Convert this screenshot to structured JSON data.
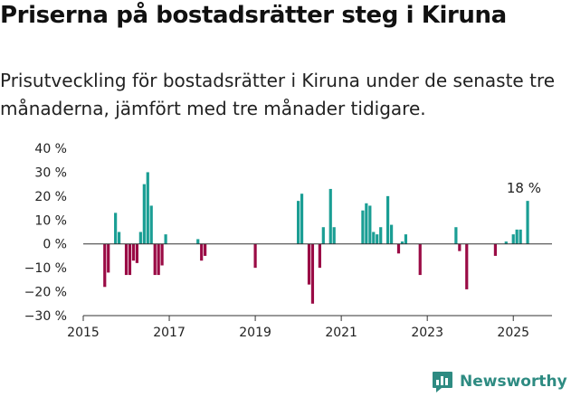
{
  "header": {
    "title": "Priserna på bostadsrätter steg i Kiruna",
    "subtitle": "Prisutveckling för bostadsrätter i Kiruna under de senaste tre månaderna, jämfört med tre månader tidigare."
  },
  "brand": {
    "name": "Newsworthy"
  },
  "colors": {
    "positive": "#1a9e94",
    "negative": "#9a0b45",
    "axis": "#333333",
    "text": "#222222",
    "brand": "#2e8b82"
  },
  "chart_data": {
    "type": "bar",
    "title": "Priserna på bostadsrätter steg i Kiruna",
    "subtitle": "Prisutveckling för bostadsrätter i Kiruna under de senaste tre månaderna, jämfört med tre månader tidigare.",
    "ylim": [
      -30,
      40
    ],
    "yticks": [
      40,
      30,
      20,
      10,
      0,
      -10,
      -20,
      -30
    ],
    "ytick_labels": [
      "40 %",
      "30 %",
      "20 %",
      "10 %",
      "0 %",
      "−10 %",
      "−20 %",
      "−30 %"
    ],
    "xlim": [
      2015.0,
      2025.9
    ],
    "xticks": [
      2015,
      2017,
      2019,
      2021,
      2023,
      2025
    ],
    "xtick_labels": [
      "2015",
      "2017",
      "2019",
      "2021",
      "2023",
      "2025"
    ],
    "grid": false,
    "annotation": {
      "text": "18 %",
      "x": 2025.33,
      "y": 18
    },
    "x": [
      2015.5,
      2015.583,
      2015.75,
      2015.833,
      2016.0,
      2016.083,
      2016.167,
      2016.25,
      2016.333,
      2016.417,
      2016.5,
      2016.583,
      2016.667,
      2016.75,
      2016.833,
      2016.917,
      2017.667,
      2017.75,
      2017.833,
      2019.0,
      2020.0,
      2020.083,
      2020.25,
      2020.333,
      2020.5,
      2020.583,
      2020.75,
      2020.833,
      2021.5,
      2021.583,
      2021.667,
      2021.75,
      2021.833,
      2021.917,
      2022.083,
      2022.167,
      2022.333,
      2022.417,
      2022.5,
      2022.833,
      2023.667,
      2023.75,
      2023.917,
      2024.583,
      2024.833,
      2025.0,
      2025.083,
      2025.167,
      2025.333
    ],
    "values": [
      -18,
      -12,
      13,
      5,
      -13,
      -13,
      -7,
      -8,
      5,
      25,
      30,
      16,
      -13,
      -13,
      -9,
      4,
      2,
      -7,
      -5,
      -10,
      18,
      21,
      -17,
      -25,
      -10,
      7,
      23,
      7,
      14,
      17,
      16,
      5,
      4,
      7,
      20,
      8,
      -4,
      1,
      4,
      -13,
      7,
      -3,
      -19,
      -5,
      1,
      4,
      6,
      6,
      18
    ]
  }
}
